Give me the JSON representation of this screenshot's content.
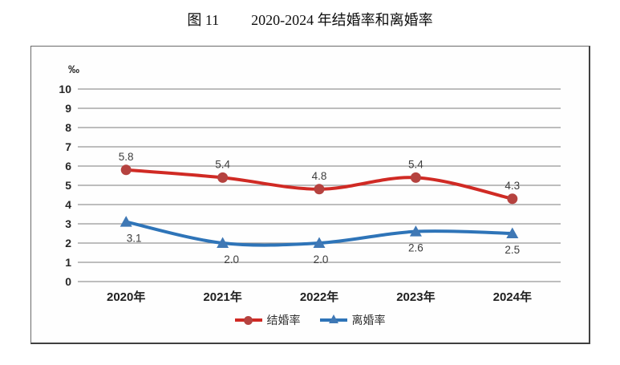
{
  "title": {
    "figure_no": "图 11",
    "text": "2020-2024 年结婚率和离婚率"
  },
  "chart_data": {
    "type": "line",
    "title": "图 11  2020-2024 年结婚率和离婚率",
    "unit_label": "‰",
    "categories": [
      "2020年",
      "2021年",
      "2022年",
      "2023年",
      "2024年"
    ],
    "series": [
      {
        "name": "结婚率",
        "values": [
          5.8,
          5.4,
          4.8,
          5.4,
          4.3
        ],
        "labels": [
          "5.8",
          "5.4",
          "4.8",
          "5.4",
          "4.3"
        ],
        "color": "#d02a24",
        "marker_color": "#b5423f",
        "marker": "circle",
        "label_position": "above",
        "label_dx": [
          0,
          0,
          0,
          0,
          0
        ]
      },
      {
        "name": "离婚率",
        "values": [
          3.1,
          2.0,
          2.0,
          2.6,
          2.5
        ],
        "labels": [
          "3.1",
          "2.0",
          "2.0",
          "2.6",
          "2.5"
        ],
        "color": "#2e74b8",
        "marker_color": "#3f78b5",
        "marker": "triangle",
        "label_position": "below",
        "label_dx": [
          10,
          11,
          2,
          0,
          0
        ]
      }
    ],
    "y_ticks": [
      "10",
      "9",
      "8",
      "7",
      "6",
      "5",
      "4",
      "3",
      "2",
      "1",
      "0"
    ],
    "ylim": [
      0,
      10
    ],
    "ytick_step": 1,
    "grid": true,
    "smoothed": true,
    "legend_position": "bottom",
    "gridline_color": "#969696"
  }
}
